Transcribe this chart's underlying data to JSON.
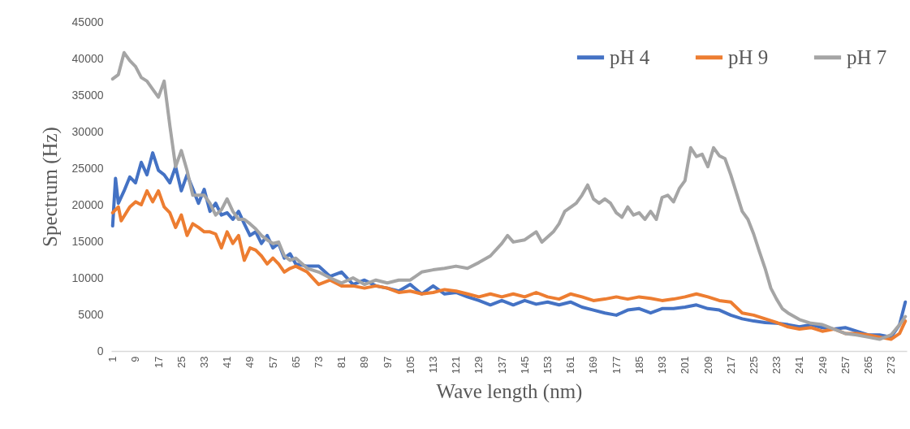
{
  "chart_data": {
    "type": "line",
    "xlabel": "Wave length (nm)",
    "ylabel": "Spectrum (Hz)",
    "xlim": [
      0.5,
      278.5
    ],
    "xticks": [
      1,
      9,
      17,
      25,
      33,
      41,
      49,
      57,
      65,
      73,
      81,
      89,
      97,
      105,
      113,
      121,
      129,
      137,
      145,
      153,
      161,
      169,
      177,
      185,
      193,
      201,
      209,
      217,
      225,
      233,
      241,
      249,
      257,
      265,
      273
    ],
    "ylim": [
      0,
      45000
    ],
    "yticks": [
      0,
      5000,
      10000,
      15000,
      20000,
      25000,
      30000,
      35000,
      40000,
      45000
    ],
    "grid": false,
    "legend": "top right",
    "series": [
      {
        "name": "pH 4",
        "color": "#4472c4",
        "x": [
          1,
          2,
          3,
          5,
          7,
          9,
          11,
          13,
          15,
          17,
          19,
          21,
          23,
          25,
          27,
          29,
          31,
          33,
          35,
          37,
          39,
          41,
          43,
          45,
          47,
          49,
          51,
          53,
          55,
          57,
          59,
          61,
          63,
          65,
          69,
          73,
          77,
          81,
          85,
          89,
          93,
          97,
          101,
          105,
          109,
          113,
          117,
          121,
          125,
          129,
          133,
          137,
          141,
          145,
          149,
          153,
          157,
          161,
          165,
          169,
          173,
          177,
          181,
          185,
          189,
          193,
          197,
          201,
          205,
          209,
          213,
          217,
          221,
          225,
          229,
          233,
          237,
          241,
          245,
          249,
          253,
          257,
          261,
          265,
          269,
          273,
          276,
          278
        ],
        "values": [
          17100,
          23600,
          20200,
          21900,
          23800,
          23000,
          25800,
          24100,
          27100,
          24700,
          24100,
          23000,
          25200,
          21900,
          24100,
          22200,
          20200,
          22100,
          19100,
          20200,
          18600,
          18900,
          18000,
          19100,
          17400,
          15800,
          16300,
          14700,
          15800,
          14100,
          14700,
          12700,
          13300,
          11900,
          11600,
          11600,
          10200,
          10800,
          9100,
          9700,
          8900,
          8600,
          8200,
          9100,
          7800,
          8900,
          7800,
          8000,
          7400,
          6900,
          6300,
          6900,
          6300,
          6900,
          6400,
          6700,
          6300,
          6700,
          6000,
          5600,
          5200,
          4900,
          5600,
          5800,
          5200,
          5800,
          5800,
          6000,
          6300,
          5800,
          5600,
          4900,
          4400,
          4100,
          3900,
          3800,
          3600,
          3300,
          3600,
          3200,
          3000,
          3200,
          2700,
          2200,
          2200,
          1900,
          3600,
          6700
        ]
      },
      {
        "name": "pH 9",
        "color": "#ed7d31",
        "x": [
          1,
          3,
          4,
          7,
          9,
          11,
          13,
          15,
          17,
          19,
          21,
          23,
          25,
          27,
          29,
          31,
          33,
          35,
          37,
          39,
          41,
          43,
          45,
          47,
          49,
          51,
          53,
          55,
          57,
          59,
          61,
          63,
          65,
          69,
          73,
          77,
          81,
          85,
          89,
          93,
          97,
          101,
          105,
          109,
          113,
          117,
          121,
          125,
          129,
          133,
          137,
          141,
          145,
          149,
          153,
          157,
          161,
          165,
          169,
          173,
          177,
          181,
          185,
          189,
          193,
          197,
          201,
          205,
          209,
          213,
          217,
          221,
          225,
          229,
          233,
          237,
          241,
          245,
          249,
          253,
          257,
          261,
          265,
          269,
          273,
          276,
          278
        ],
        "values": [
          18900,
          19700,
          17800,
          19700,
          20400,
          20000,
          21900,
          20400,
          21900,
          19700,
          18900,
          16900,
          18600,
          15800,
          17400,
          16900,
          16300,
          16300,
          16000,
          14100,
          16300,
          14700,
          15800,
          12400,
          14100,
          13800,
          13000,
          11900,
          12700,
          11900,
          10800,
          11300,
          11600,
          10800,
          9100,
          9700,
          8900,
          8900,
          8600,
          8900,
          8600,
          8000,
          8200,
          7800,
          8000,
          8400,
          8200,
          7800,
          7400,
          7800,
          7400,
          7800,
          7400,
          8000,
          7400,
          7100,
          7800,
          7400,
          6900,
          7100,
          7400,
          7100,
          7400,
          7200,
          6900,
          7100,
          7400,
          7800,
          7400,
          6900,
          6700,
          5200,
          4900,
          4400,
          3900,
          3300,
          3000,
          3200,
          2700,
          3000,
          2400,
          2400,
          2200,
          1900,
          1600,
          2400,
          4100
        ]
      },
      {
        "name": "pH 7",
        "color": "#a5a5a5",
        "x": [
          1,
          3,
          5,
          7,
          9,
          11,
          13,
          15,
          17,
          19,
          21,
          23,
          25,
          27,
          29,
          31,
          33,
          35,
          37,
          39,
          41,
          43,
          45,
          47,
          49,
          51,
          53,
          55,
          57,
          59,
          61,
          63,
          65,
          69,
          73,
          77,
          81,
          85,
          89,
          93,
          97,
          101,
          105,
          109,
          113,
          117,
          121,
          125,
          129,
          133,
          137,
          139,
          141,
          145,
          149,
          151,
          155,
          157,
          159,
          163,
          165,
          167,
          169,
          171,
          173,
          175,
          177,
          179,
          181,
          183,
          185,
          187,
          189,
          191,
          193,
          195,
          197,
          199,
          201,
          203,
          205,
          207,
          209,
          211,
          213,
          215,
          217,
          219,
          221,
          223,
          225,
          227,
          229,
          231,
          233,
          235,
          237,
          241,
          245,
          249,
          253,
          257,
          261,
          265,
          269,
          273,
          276,
          278
        ],
        "values": [
          37200,
          37800,
          40800,
          39700,
          38900,
          37400,
          36900,
          35800,
          34700,
          36900,
          30800,
          25200,
          27400,
          24700,
          21300,
          21300,
          21300,
          20200,
          18600,
          19300,
          20800,
          19100,
          18000,
          18000,
          17400,
          16700,
          15800,
          15200,
          14700,
          14900,
          13000,
          12400,
          12700,
          11300,
          10800,
          10000,
          9300,
          10000,
          9100,
          9700,
          9300,
          9700,
          9700,
          10800,
          11100,
          11300,
          11600,
          11300,
          12100,
          13000,
          14700,
          15800,
          14900,
          15200,
          16300,
          14900,
          16300,
          17400,
          19100,
          20200,
          21300,
          22700,
          20800,
          20200,
          20800,
          20200,
          18900,
          18300,
          19700,
          18600,
          18900,
          18000,
          19100,
          18000,
          21000,
          21300,
          20400,
          22200,
          23300,
          27800,
          26600,
          26900,
          25200,
          27800,
          26700,
          26300,
          24100,
          21600,
          19100,
          18000,
          16000,
          13600,
          11300,
          8600,
          7100,
          5800,
          5200,
          4300,
          3800,
          3600,
          3000,
          2400,
          2200,
          1900,
          1600,
          2200,
          3600,
          4700
        ]
      }
    ]
  }
}
